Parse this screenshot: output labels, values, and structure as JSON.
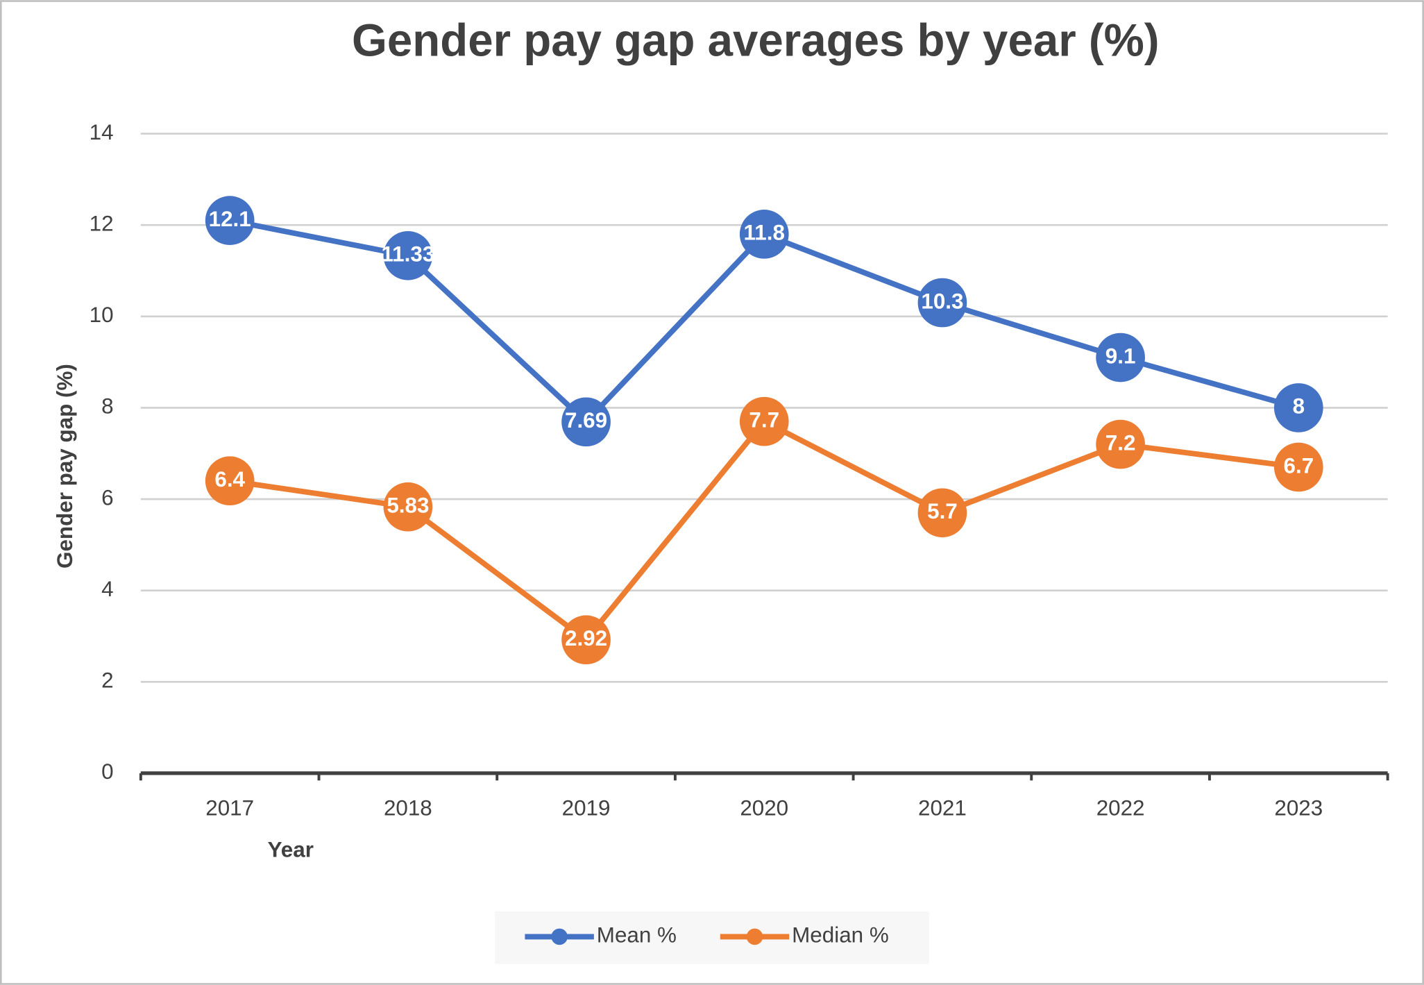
{
  "chart_data": {
    "type": "line",
    "title": "Gender pay gap averages by year (%)",
    "x_label": "Year",
    "y_label": "Gender pay gap (%)",
    "categories": [
      "2017",
      "2018",
      "2019",
      "2020",
      "2021",
      "2022",
      "2023"
    ],
    "series": [
      {
        "name": "Mean %",
        "color": "#4472c4",
        "values": [
          12.1,
          11.33,
          7.69,
          11.8,
          10.3,
          9.1,
          8
        ]
      },
      {
        "name": "Median %",
        "color": "#ed7d31",
        "values": [
          6.4,
          5.83,
          2.92,
          7.7,
          5.7,
          7.2,
          6.7
        ]
      }
    ],
    "ylim": [
      0,
      14
    ],
    "yticks": [
      0,
      2,
      4,
      6,
      8,
      10,
      12,
      14
    ],
    "grid": true,
    "legend": "bottom"
  }
}
